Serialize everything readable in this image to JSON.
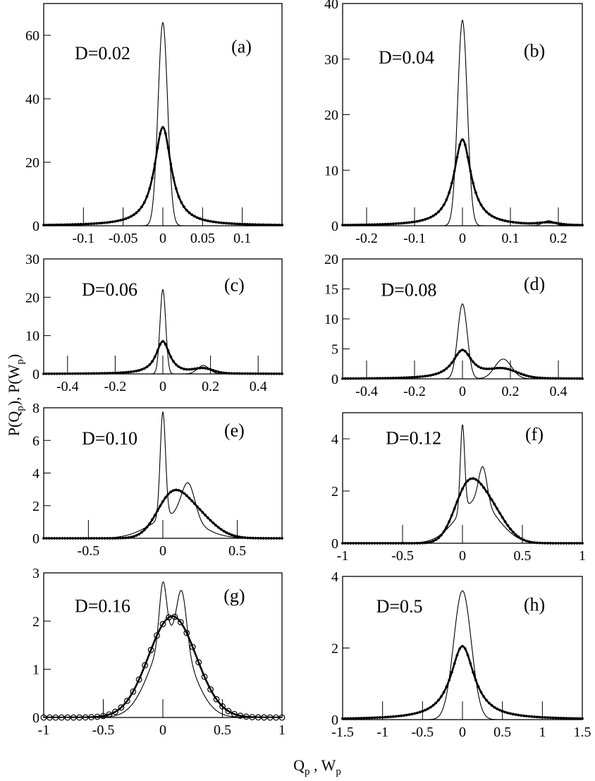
{
  "figure": {
    "ylabel": "P(Q",
    "ylabel_sub1": "p",
    "ylabel_mid": "),  P(W",
    "ylabel_sub2": "p",
    "ylabel_end": ")",
    "xlabel": "Q",
    "xlabel_sub1": "p",
    "xlabel_mid": " , W",
    "xlabel_sub2": "p"
  },
  "chart_data": [
    {
      "type": "line",
      "panel": "(a)",
      "annotation": "D=0.02",
      "xlim": [
        -0.15,
        0.15
      ],
      "ylim": [
        0,
        70
      ],
      "xticks": [
        -0.1,
        -0.05,
        0,
        0.05,
        0.1
      ],
      "xticklabels": [
        "-0.1",
        "-0.05",
        "0",
        "0.05",
        "0.1"
      ],
      "yticks": [
        0,
        20,
        40,
        60
      ],
      "yticklabels": [
        "0",
        "20",
        "40",
        "60"
      ],
      "series": [
        {
          "name": "thin",
          "components": [
            {
              "a": 64,
              "c": 0,
              "s": 0.006
            }
          ]
        },
        {
          "name": "thick-markers",
          "marker": "dot",
          "components": [
            {
              "a": 31,
              "c": 0,
              "l": 0.013
            }
          ]
        }
      ]
    },
    {
      "type": "line",
      "panel": "(b)",
      "annotation": "D=0.04",
      "xlim": [
        -0.25,
        0.25
      ],
      "ylim": [
        0,
        40
      ],
      "xticks": [
        -0.2,
        -0.1,
        0,
        0.1,
        0.2
      ],
      "xticklabels": [
        "-0.2",
        "-0.1",
        "0",
        "0.1",
        "0.2"
      ],
      "yticks": [
        0,
        10,
        20,
        30,
        40
      ],
      "yticklabels": [
        "0",
        "10",
        "20",
        "30",
        "40"
      ],
      "series": [
        {
          "name": "thin",
          "components": [
            {
              "a": 37,
              "c": 0,
              "s": 0.01
            },
            {
              "a": 0.9,
              "c": 0.18,
              "s": 0.012
            }
          ]
        },
        {
          "name": "thick-markers",
          "marker": "dot",
          "components": [
            {
              "a": 15.5,
              "c": 0,
              "l": 0.022
            },
            {
              "a": 0.4,
              "c": 0.18,
              "s": 0.02
            }
          ]
        }
      ]
    },
    {
      "type": "line",
      "panel": "(c)",
      "annotation": "D=0.06",
      "xlim": [
        -0.5,
        0.5
      ],
      "ylim": [
        0,
        30
      ],
      "xticks": [
        -0.4,
        -0.2,
        0,
        0.2,
        0.4
      ],
      "xticklabels": [
        "-0.4",
        "-0.2",
        "0",
        "0.2",
        "0.4"
      ],
      "yticks": [
        0,
        10,
        20,
        30
      ],
      "yticklabels": [
        "0",
        "10",
        "20",
        "30"
      ],
      "series": [
        {
          "name": "thin",
          "components": [
            {
              "a": 22,
              "c": 0,
              "s": 0.012
            },
            {
              "a": 2.2,
              "c": 0.17,
              "s": 0.025
            }
          ]
        },
        {
          "name": "thick-markers",
          "marker": "dot",
          "components": [
            {
              "a": 8.5,
              "c": 0,
              "l": 0.035
            },
            {
              "a": 1.2,
              "c": 0.17,
              "s": 0.04
            }
          ]
        }
      ]
    },
    {
      "type": "line",
      "panel": "(d)",
      "annotation": "D=0.08",
      "xlim": [
        -0.5,
        0.5
      ],
      "ylim": [
        0,
        20
      ],
      "xticks": [
        -0.4,
        -0.2,
        0,
        0.2,
        0.4
      ],
      "xticklabels": [
        "-0.4",
        "-0.2",
        "0",
        "0.2",
        "0.4"
      ],
      "yticks": [
        0,
        5,
        10,
        15,
        20
      ],
      "yticklabels": [
        "0",
        "5",
        "10",
        "15",
        "20"
      ],
      "series": [
        {
          "name": "thin",
          "components": [
            {
              "a": 12.5,
              "c": 0,
              "s": 0.02
            },
            {
              "a": 3.3,
              "c": 0.17,
              "s": 0.035
            }
          ]
        },
        {
          "name": "thick-markers",
          "marker": "dot",
          "components": [
            {
              "a": 4.8,
              "c": 0,
              "l": 0.05
            },
            {
              "a": 1.4,
              "c": 0.17,
              "s": 0.06
            }
          ]
        }
      ]
    },
    {
      "type": "line",
      "panel": "(e)",
      "annotation": "D=0.10",
      "xlim": [
        -0.8,
        0.8
      ],
      "ylim": [
        0,
        8
      ],
      "xticks": [
        -0.5,
        0,
        0.5
      ],
      "xticklabels": [
        "-0.5",
        "0",
        "0.5"
      ],
      "yticks": [
        0,
        2,
        4,
        6,
        8
      ],
      "yticklabels": [
        "0",
        "2",
        "4",
        "6",
        "8"
      ],
      "series": [
        {
          "name": "thin",
          "components": [
            {
              "a": 6.5,
              "c": 0,
              "s": 0.018
            },
            {
              "a": 2.2,
              "c": 0.17,
              "s": 0.045
            },
            {
              "a": 1.4,
              "c": 0.08,
              "s": 0.16
            }
          ]
        },
        {
          "name": "thick-markers",
          "marker": "dot",
          "components": [
            {
              "a": 2.0,
              "c": 0.05,
              "s": 0.1
            },
            {
              "a": 1.6,
              "c": 0.2,
              "s": 0.13
            }
          ]
        }
      ]
    },
    {
      "type": "line",
      "panel": "(f)",
      "annotation": "D=0.12",
      "xlim": [
        -1,
        1
      ],
      "ylim": [
        0,
        5
      ],
      "xticks": [
        -1,
        -0.5,
        0,
        0.5,
        1
      ],
      "xticklabels": [
        "-1",
        "-0.5",
        "0",
        "0.5",
        "1"
      ],
      "yticks": [
        0,
        2,
        4
      ],
      "yticklabels": [
        "0",
        "2",
        "4"
      ],
      "series": [
        {
          "name": "thin",
          "components": [
            {
              "a": 3.3,
              "c": 0,
              "s": 0.018
            },
            {
              "a": 1.4,
              "c": 0.17,
              "s": 0.035
            },
            {
              "a": 1.6,
              "c": 0.12,
              "s": 0.17
            }
          ]
        },
        {
          "name": "thick-markers",
          "marker": "dot",
          "components": [
            {
              "a": 1.6,
              "c": 0.03,
              "s": 0.11
            },
            {
              "a": 1.5,
              "c": 0.2,
              "s": 0.14
            }
          ]
        }
      ]
    },
    {
      "type": "line",
      "panel": "(g)",
      "annotation": "D=0.16",
      "xlim": [
        -1,
        1
      ],
      "ylim": [
        0,
        3
      ],
      "xticks": [
        -1,
        -0.5,
        0,
        0.5,
        1
      ],
      "xticklabels": [
        "-1",
        "-0.5",
        "0",
        "0.5",
        "1"
      ],
      "yticks": [
        0,
        1,
        2,
        3
      ],
      "yticklabels": [
        "0",
        "1",
        "2",
        "3"
      ],
      "series": [
        {
          "name": "thin",
          "components": [
            {
              "a": 1.2,
              "c": 0,
              "s": 0.03
            },
            {
              "a": 1.1,
              "c": 0.16,
              "s": 0.04
            },
            {
              "a": 1.75,
              "c": 0.07,
              "s": 0.17
            }
          ]
        },
        {
          "name": "thick-markers",
          "marker": "circle",
          "components": [
            {
              "a": 2.1,
              "c": 0.08,
              "s": 0.2
            }
          ]
        }
      ]
    },
    {
      "type": "line",
      "panel": "(h)",
      "annotation": "D=0.5",
      "xlim": [
        -1.5,
        1.5
      ],
      "ylim": [
        0,
        4
      ],
      "xticks": [
        -1.5,
        -1,
        -0.5,
        0,
        0.5,
        1,
        1.5
      ],
      "xticklabels": [
        "-1.5",
        "-1",
        "-0.5",
        "0",
        "0.5",
        "1",
        "1.5"
      ],
      "yticks": [
        0,
        2,
        4
      ],
      "yticklabels": [
        "0",
        "2",
        "4"
      ],
      "series": [
        {
          "name": "thin",
          "components": [
            {
              "a": 3.6,
              "c": 0,
              "s": 0.11
            }
          ]
        },
        {
          "name": "thick-markers",
          "marker": "dot",
          "components": [
            {
              "a": 2.05,
              "c": 0,
              "l": 0.18
            }
          ]
        }
      ]
    }
  ]
}
